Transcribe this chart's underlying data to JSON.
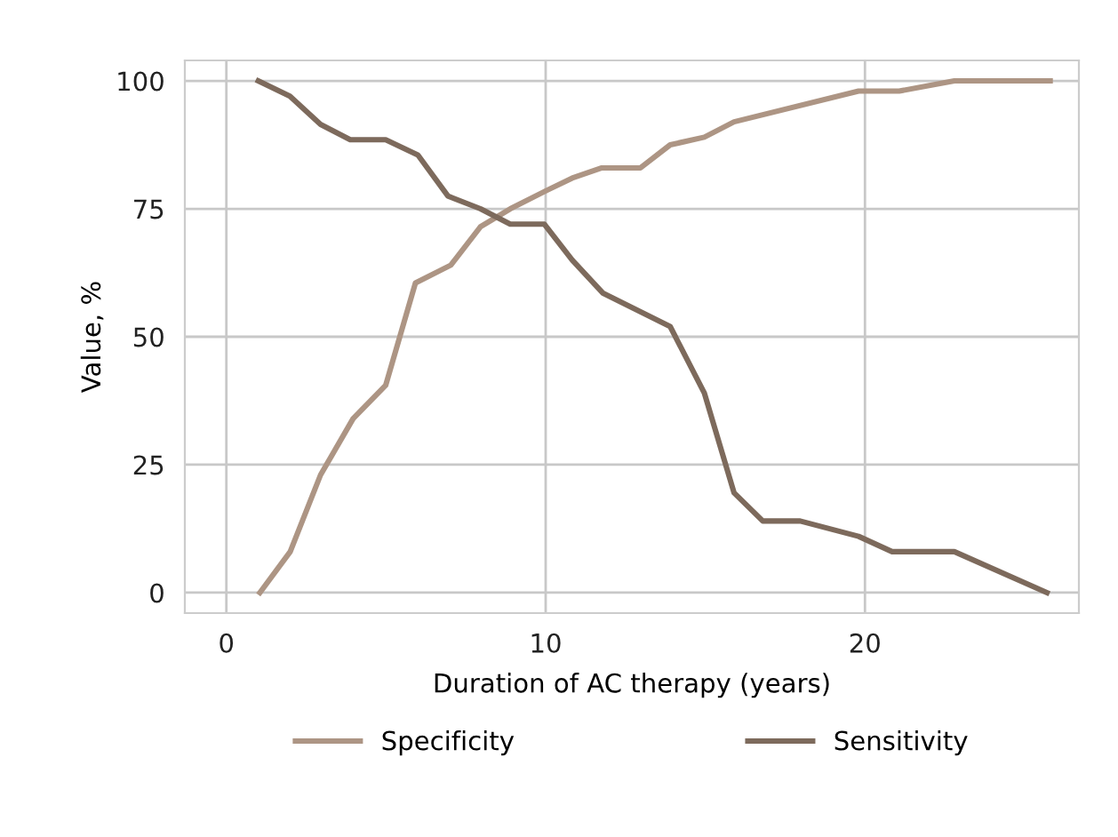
{
  "chart_data": {
    "type": "line",
    "xlabel": "Duration of AC therapy (years)",
    "ylabel": "Value, %",
    "xlim": [
      -1.3,
      26.7
    ],
    "ylim": [
      -4,
      104
    ],
    "xticks": [
      0,
      10,
      20
    ],
    "yticks": [
      0,
      25,
      50,
      75,
      100
    ],
    "grid": true,
    "legend": "bottom",
    "marker": "none",
    "line_style": "solid",
    "series": [
      {
        "name": "Specificity",
        "color": "#ad9584",
        "x": [
          1.05,
          2.0,
          2.95,
          3.97,
          4.99,
          5.92,
          7.03,
          7.96,
          8.89,
          10.0,
          10.83,
          11.76,
          12.97,
          13.9,
          14.97,
          15.9,
          19.8,
          21.07,
          22.8,
          25.8
        ],
        "values": [
          0,
          8,
          23,
          34,
          40.5,
          60.5,
          64,
          71.5,
          75,
          78.5,
          81,
          83,
          83,
          87.5,
          89,
          92,
          98,
          98,
          100,
          100
        ]
      },
      {
        "name": "Sensitivity",
        "color": "#7d6a5c",
        "x": [
          1.0,
          1.99,
          2.95,
          3.88,
          4.99,
          6.0,
          6.94,
          7.96,
          8.89,
          9.96,
          10.83,
          11.8,
          13.9,
          14.97,
          15.9,
          16.8,
          17.97,
          19.8,
          20.85,
          22.8,
          25.7
        ],
        "values": [
          100,
          97,
          91.5,
          88.5,
          88.5,
          85.5,
          77.5,
          75,
          72,
          72,
          65,
          58.5,
          52,
          39,
          19.5,
          14,
          14,
          11,
          8,
          8,
          0
        ]
      }
    ]
  }
}
